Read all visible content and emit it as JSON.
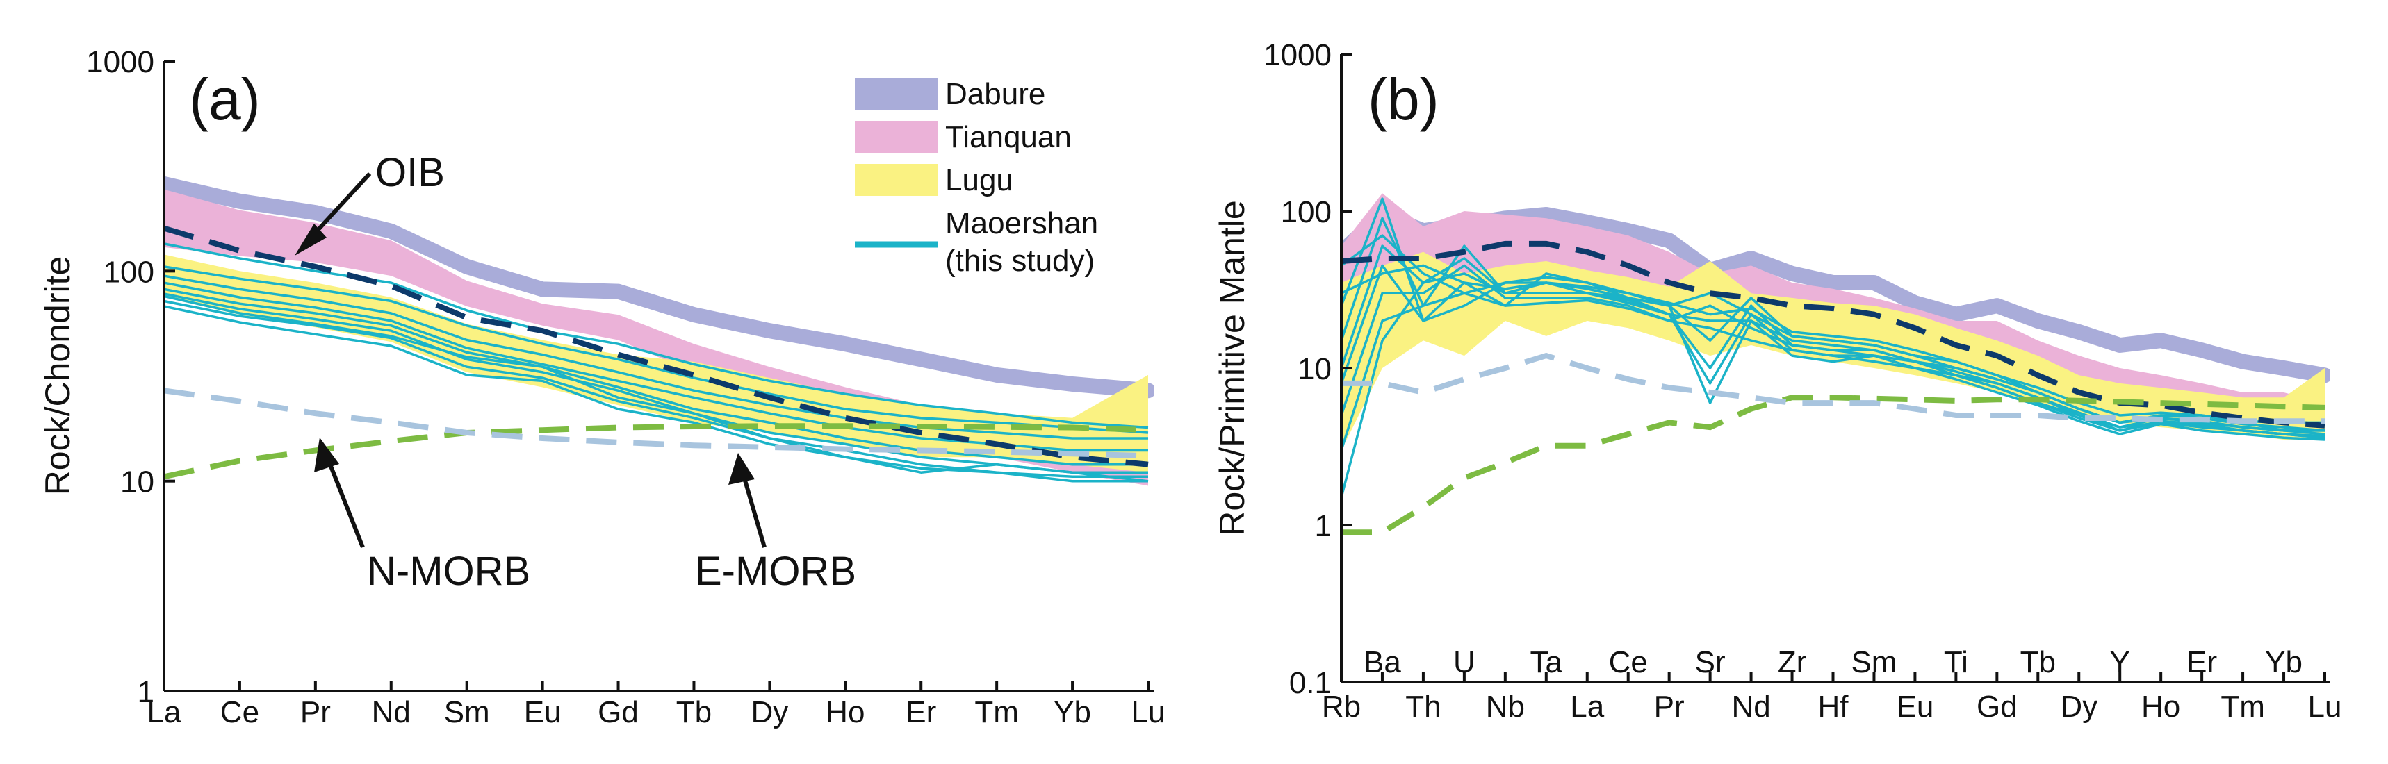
{
  "colors": {
    "dabure": "#a9acd9",
    "tianquan": "#ebb2d8",
    "lugu": "#faf282",
    "maoershan": "#1bb3c8",
    "oib": "#0d3a6b",
    "n_morb": "#7dbb42",
    "e_morb": "#a8c4de"
  },
  "chart_data": [
    {
      "id": "a",
      "type": "line",
      "panel_label": "(a)",
      "ylabel": "Rock/Chondrite",
      "yscale": "log",
      "ylim": [
        1,
        1000
      ],
      "yticks": [
        "1",
        "10",
        "100",
        "1000"
      ],
      "categories": [
        "La",
        "Ce",
        "Pr",
        "Nd",
        "Sm",
        "Eu",
        "Gd",
        "Tb",
        "Dy",
        "Ho",
        "Er",
        "Tm",
        "Yb",
        "Lu"
      ],
      "legend": [
        {
          "key": "dabure",
          "label": "Dabure"
        },
        {
          "key": "tianquan",
          "label": "Tianquan"
        },
        {
          "key": "lugu",
          "label": "Lugu"
        },
        {
          "key": "maoershan",
          "label": "Maoershan",
          "label2": "(this study)"
        }
      ],
      "annotations": [
        {
          "key": "oib",
          "text": "OIB"
        },
        {
          "key": "n_morb",
          "text": "N-MORB"
        },
        {
          "key": "e_morb",
          "text": "E-MORB"
        }
      ],
      "series": [
        {
          "name": "Dabure",
          "kind": "band",
          "color_key": "dabure",
          "values": [
            260,
            215,
            190,
            155,
            105,
            82,
            80,
            62,
            52,
            45,
            38,
            32,
            29,
            27
          ]
        },
        {
          "name": "Tianquan",
          "kind": "band",
          "color_key": "tianquan",
          "upper": [
            245,
            195,
            170,
            140,
            90,
            70,
            62,
            45,
            35,
            28,
            23,
            18,
            16,
            16
          ],
          "lower": [
            130,
            118,
            110,
            95,
            68,
            55,
            47,
            33,
            25,
            20,
            16,
            13,
            11,
            9.5
          ]
        },
        {
          "name": "Lugu",
          "kind": "band",
          "color_key": "lugu",
          "upper": [
            120,
            100,
            88,
            75,
            56,
            47,
            40,
            37,
            31,
            26,
            23,
            21,
            20,
            32
          ],
          "lower": [
            75,
            62,
            54,
            46,
            33,
            28,
            23,
            19,
            17,
            15,
            13,
            13,
            12,
            11
          ]
        },
        {
          "name": "Maoershan",
          "kind": "lines",
          "color_key": "maoershan",
          "lines": [
            [
              135,
              115,
              100,
              88,
              65,
              52,
              45,
              36,
              30,
              26,
              23,
              21,
              19,
              18
            ],
            [
              105,
              92,
              82,
              72,
              55,
              45,
              38,
              31,
              26,
              22,
              20,
              19,
              18,
              17
            ],
            [
              95,
              82,
              73,
              63,
              47,
              40,
              33,
              27,
              23,
              20,
              18,
              17,
              16,
              16
            ],
            [
              88,
              75,
              67,
              58,
              43,
              36,
              30,
              25,
              21,
              18,
              16,
              15,
              14,
              14
            ],
            [
              82,
              70,
              63,
              55,
              41,
              35,
              28,
              22,
              19,
              16,
              14,
              13,
              12,
              12
            ],
            [
              78,
              66,
              59,
              52,
              38,
              33,
              27,
              21,
              17,
              15,
              13,
              12,
              11,
              11
            ],
            [
              72,
              61,
              55,
              48,
              35,
              31,
              24,
              20,
              16,
              14,
              12,
              11,
              10.5,
              10.5
            ],
            [
              76,
              63,
              56,
              49,
              39,
              35,
              25,
              21,
              16,
              13,
              11,
              12,
              11,
              10
            ],
            [
              68,
              57,
              50,
              44,
              32,
              30,
              22,
              19,
              15,
              13,
              11.5,
              11,
              10,
              10
            ]
          ]
        },
        {
          "name": "OIB",
          "kind": "dashed",
          "color_key": "oib",
          "values": [
            160,
            125,
            105,
            85,
            60,
            52,
            40,
            32,
            25,
            20,
            17,
            15,
            13,
            12
          ]
        },
        {
          "name": "N-MORB",
          "kind": "dashed",
          "color_key": "n_morb",
          "values": [
            10.5,
            12.5,
            14,
            15.5,
            17,
            17.5,
            18,
            18.2,
            18.3,
            18.3,
            18.2,
            18.1,
            18,
            17.5
          ]
        },
        {
          "name": "E-MORB",
          "kind": "dashed",
          "color_key": "e_morb",
          "values": [
            27,
            24,
            21,
            19,
            17,
            16,
            15.3,
            14.8,
            14.5,
            14.2,
            14,
            13.8,
            13.5,
            13.2
          ]
        }
      ]
    },
    {
      "id": "b",
      "type": "line",
      "panel_label": "(b)",
      "ylabel": "Rock/Primitive Mantle",
      "yscale": "log",
      "ylim": [
        0.1,
        1000
      ],
      "yticks": [
        "0.1",
        "1",
        "10",
        "100",
        "1000"
      ],
      "categories": [
        "Rb",
        "Ba",
        "Th",
        "U",
        "Nb",
        "Ta",
        "La",
        "Ce",
        "Pr",
        "Sr",
        "Nd",
        "Zr",
        "Hf",
        "Sm",
        "Eu",
        "Ti",
        "Gd",
        "Tb",
        "Dy",
        "Y",
        "Ho",
        "Er",
        "Tm",
        "Yb",
        "Lu"
      ],
      "series": [
        {
          "name": "Dabure",
          "kind": "band",
          "color_key": "dabure",
          "values": [
            55,
            95,
            75,
            82,
            90,
            95,
            85,
            75,
            65,
            42,
            50,
            40,
            35,
            35,
            26,
            22,
            25,
            20,
            17,
            14,
            15,
            13,
            11,
            10,
            9
          ]
        },
        {
          "name": "Tianquan",
          "kind": "band",
          "color_key": "tianquan",
          "upper": [
            60,
            130,
            80,
            100,
            95,
            90,
            80,
            70,
            55,
            40,
            45,
            35,
            32,
            28,
            24,
            20,
            20,
            15,
            12,
            10,
            9,
            8,
            7,
            7,
            6
          ],
          "lower": [
            20,
            40,
            30,
            35,
            40,
            40,
            38,
            35,
            30,
            20,
            25,
            20,
            18,
            16,
            13,
            12,
            11,
            9,
            7,
            6,
            5.5,
            5,
            4.5,
            4,
            4
          ]
        },
        {
          "name": "Lugu",
          "kind": "band",
          "color_key": "lugu",
          "upper": [
            35,
            45,
            55,
            40,
            45,
            48,
            42,
            38,
            33,
            48,
            30,
            28,
            26,
            25,
            22,
            18,
            15,
            12,
            9,
            8,
            7.5,
            7,
            6.5,
            6.5,
            10
          ],
          "lower": [
            3,
            10,
            15,
            12,
            20,
            16,
            20,
            18,
            15,
            12,
            14,
            12,
            11,
            10,
            9,
            8,
            7,
            6,
            5,
            4.5,
            4.2,
            4,
            3.8,
            3.5,
            3.5
          ]
        },
        {
          "name": "Maoershan",
          "kind": "lines",
          "color_key": "maoershan",
          "lines": [
            [
              25,
              120,
              20,
              35,
              25,
              40,
              35,
              30,
              25,
              15,
              28,
              16,
              15,
              14,
              12,
              11,
              9,
              7,
              5.5,
              4.5,
              5,
              5,
              4.5,
              4,
              4
            ],
            [
              15,
              90,
              25,
              60,
              30,
              35,
              32,
              28,
              22,
              10,
              25,
              14,
              13,
              13,
              11,
              10,
              8.5,
              7,
              5.5,
              4.5,
              4.8,
              4.5,
              4.2,
              4,
              3.8
            ],
            [
              10,
              60,
              35,
              40,
              30,
              30,
              30,
              27,
              22,
              8,
              22,
              13,
              12,
              12,
              10,
              9,
              8,
              6.5,
              5,
              4.2,
              4.5,
              4.3,
              4,
              3.8,
              3.7
            ],
            [
              8,
              45,
              20,
              25,
              35,
              38,
              35,
              28,
              25,
              6,
              20,
              12,
              11,
              12,
              10,
              9,
              7.5,
              6,
              5,
              4,
              4.5,
              4.2,
              4,
              3.8,
              3.6
            ],
            [
              5,
              30,
              30,
              45,
              28,
              28,
              28,
              25,
              20,
              18,
              15,
              13,
              12,
              11,
              10,
              8.5,
              7,
              5.8,
              4.6,
              3.8,
              4.4,
              4,
              3.8,
              3.6,
              3.5
            ],
            [
              3,
              20,
              25,
              30,
              25,
              26,
              27,
              24,
              20,
              25,
              18,
              14,
              13,
              12,
              11,
              9,
              7.5,
              6,
              4.8,
              4,
              4.6,
              4.4,
              4,
              3.8,
              3.6
            ],
            [
              1.5,
              15,
              35,
              50,
              30,
              30,
              30,
              26,
              22,
              20,
              20,
              15,
              14,
              13,
              11,
              9.5,
              8,
              6.5,
              5.2,
              4.2,
              4.8,
              4.6,
              4.2,
              4,
              4
            ],
            [
              30,
              40,
              45,
              35,
              32,
              35,
              30,
              28,
              25,
              30,
              22,
              16,
              15,
              14,
              12,
              10,
              8.5,
              7,
              5.5,
              4.5,
              5,
              4.8,
              4.4,
              4.2,
              4
            ],
            [
              45,
              70,
              40,
              30,
              35,
              35,
              33,
              30,
              26,
              22,
              24,
              17,
              16,
              15,
              13,
              11,
              9,
              7.5,
              6,
              5,
              5.2,
              5,
              4.6,
              4.5,
              4.5
            ]
          ]
        },
        {
          "name": "OIB",
          "kind": "dashed",
          "color_key": "oib",
          "values": [
            48,
            50,
            50,
            55,
            62,
            62,
            55,
            45,
            35,
            30,
            28,
            25,
            24,
            22,
            18,
            14,
            12,
            9,
            7,
            6,
            5.8,
            5.2,
            4.8,
            4.5,
            4.3
          ]
        },
        {
          "name": "N-MORB",
          "kind": "dashed",
          "color_key": "n_morb",
          "values": [
            0.9,
            0.9,
            1.3,
            2.0,
            2.5,
            3.2,
            3.2,
            3.8,
            4.5,
            4.2,
            5.5,
            6.5,
            6.5,
            6.4,
            6.3,
            6.2,
            6.3,
            6.3,
            6.2,
            6.1,
            6.0,
            5.9,
            5.8,
            5.7,
            5.6
          ]
        },
        {
          "name": "E-MORB",
          "kind": "dashed",
          "color_key": "e_morb",
          "values": [
            8,
            8,
            7,
            8.5,
            10,
            12,
            10,
            8.5,
            7.5,
            7,
            6.5,
            6,
            6,
            6,
            5.5,
            5,
            5,
            5,
            4.8,
            4.8,
            4.7,
            4.7,
            4.6,
            4.6,
            4.6
          ]
        }
      ]
    }
  ]
}
